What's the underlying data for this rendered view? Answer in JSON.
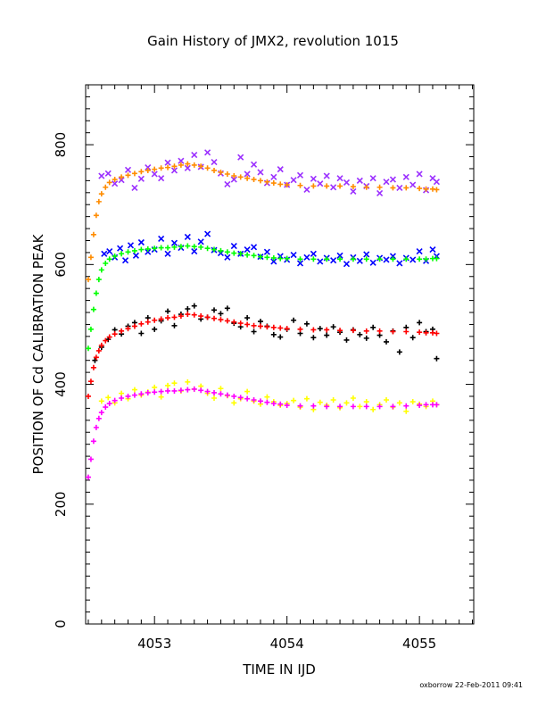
{
  "chart_data": {
    "type": "scatter",
    "title": "Gain History of JMX2, revolution 1015",
    "xlabel": "TIME IN IJD",
    "ylabel": "POSITION OF Cd CALIBRATION PEAK",
    "xlim": [
      4052.48,
      4055.41
    ],
    "ylim": [
      0,
      900
    ],
    "x_ticks": [
      4053,
      4054,
      4055
    ],
    "y_ticks": [
      0,
      200,
      400,
      600,
      800
    ],
    "grid": false,
    "legend": "none",
    "footer": "oxborrow 22-Feb-2011 09:41",
    "series": [
      {
        "color": "#9b30ff",
        "marker": "x",
        "x": [
          4052.6,
          4052.65,
          4052.7,
          4052.75,
          4052.8,
          4052.85,
          4052.9,
          4052.95,
          4053.0,
          4053.05,
          4053.1,
          4053.15,
          4053.2,
          4053.25,
          4053.3,
          4053.35,
          4053.4,
          4053.45,
          4053.5,
          4053.55,
          4053.6,
          4053.65,
          4053.7,
          4053.75,
          4053.8,
          4053.85,
          4053.9,
          4053.95,
          4054.0,
          4054.05,
          4054.1,
          4054.15,
          4054.2,
          4054.25,
          4054.3,
          4054.35,
          4054.4,
          4054.45,
          4054.5,
          4054.55,
          4054.6,
          4054.65,
          4054.7,
          4054.75,
          4054.8,
          4054.85,
          4054.9,
          4054.95,
          4055.0,
          4055.05,
          4055.1,
          4055.13
        ],
        "y": [
          748,
          752,
          735,
          741,
          758,
          728,
          743,
          762,
          751,
          744,
          770,
          757,
          773,
          761,
          783,
          763,
          787,
          771,
          752,
          734,
          742,
          779,
          751,
          767,
          754,
          736,
          746,
          759,
          733,
          741,
          749,
          725,
          743,
          735,
          748,
          729,
          744,
          737,
          722,
          740,
          731,
          744,
          719,
          738,
          742,
          728,
          746,
          733,
          751,
          724,
          744,
          738
        ]
      },
      {
        "color": "#ff8c00",
        "marker": "+",
        "x": [
          4052.5,
          4052.52,
          4052.54,
          4052.56,
          4052.58,
          4052.6,
          4052.63,
          4052.66,
          4052.7,
          4052.75,
          4052.8,
          4052.85,
          4052.9,
          4052.95,
          4053.0,
          4053.05,
          4053.1,
          4053.15,
          4053.2,
          4053.25,
          4053.3,
          4053.35,
          4053.4,
          4053.45,
          4053.5,
          4053.55,
          4053.6,
          4053.65,
          4053.7,
          4053.75,
          4053.8,
          4053.85,
          4053.9,
          4053.95,
          4054.0,
          4054.1,
          4054.2,
          4054.3,
          4054.4,
          4054.5,
          4054.6,
          4054.7,
          4054.8,
          4054.9,
          4055.0,
          4055.05,
          4055.1,
          4055.13
        ],
        "y": [
          575,
          612,
          650,
          682,
          705,
          718,
          729,
          737,
          742,
          746,
          749,
          752,
          755,
          757,
          759,
          761,
          762,
          764,
          766,
          768,
          766,
          764,
          761,
          757,
          754,
          751,
          748,
          746,
          744,
          742,
          740,
          738,
          736,
          734,
          733,
          732,
          731,
          731,
          731,
          730,
          729,
          729,
          728,
          728,
          727,
          726,
          726,
          725
        ]
      },
      {
        "color": "#0000ff",
        "marker": "x",
        "x": [
          4052.62,
          4052.66,
          4052.7,
          4052.74,
          4052.78,
          4052.82,
          4052.86,
          4052.9,
          4052.95,
          4053.0,
          4053.05,
          4053.1,
          4053.15,
          4053.2,
          4053.25,
          4053.3,
          4053.35,
          4053.4,
          4053.45,
          4053.5,
          4053.55,
          4053.6,
          4053.65,
          4053.7,
          4053.75,
          4053.8,
          4053.85,
          4053.9,
          4053.95,
          4054.0,
          4054.05,
          4054.1,
          4054.15,
          4054.2,
          4054.25,
          4054.3,
          4054.35,
          4054.4,
          4054.45,
          4054.5,
          4054.55,
          4054.6,
          4054.65,
          4054.7,
          4054.75,
          4054.8,
          4054.85,
          4054.9,
          4054.95,
          4055.0,
          4055.05,
          4055.1,
          4055.13
        ],
        "y": [
          618,
          622,
          612,
          627,
          607,
          632,
          615,
          637,
          621,
          625,
          643,
          618,
          636,
          628,
          646,
          622,
          638,
          651,
          624,
          619,
          612,
          631,
          618,
          625,
          629,
          613,
          621,
          605,
          614,
          608,
          616,
          602,
          612,
          618,
          605,
          611,
          607,
          615,
          601,
          612,
          606,
          617,
          603,
          611,
          608,
          614,
          602,
          611,
          608,
          622,
          606,
          625,
          614
        ]
      },
      {
        "color": "#00ff00",
        "marker": "+",
        "x": [
          4052.5,
          4052.52,
          4052.54,
          4052.56,
          4052.58,
          4052.6,
          4052.63,
          4052.66,
          4052.7,
          4052.75,
          4052.8,
          4052.85,
          4052.9,
          4052.95,
          4053.0,
          4053.05,
          4053.1,
          4053.15,
          4053.2,
          4053.25,
          4053.3,
          4053.35,
          4053.4,
          4053.45,
          4053.5,
          4053.55,
          4053.6,
          4053.65,
          4053.7,
          4053.75,
          4053.8,
          4053.85,
          4053.9,
          4053.95,
          4054.0,
          4054.1,
          4054.2,
          4054.3,
          4054.4,
          4054.5,
          4054.6,
          4054.7,
          4054.8,
          4054.9,
          4055.0,
          4055.05,
          4055.1,
          4055.13
        ],
        "y": [
          460,
          492,
          525,
          552,
          575,
          591,
          602,
          609,
          614,
          618,
          621,
          623,
          625,
          626,
          627,
          628,
          628,
          629,
          630,
          631,
          630,
          629,
          627,
          625,
          623,
          621,
          619,
          618,
          616,
          615,
          613,
          612,
          611,
          610,
          610,
          609,
          609,
          609,
          609,
          609,
          609,
          609,
          609,
          609,
          609,
          609,
          610,
          610
        ]
      },
      {
        "color": "#000000",
        "marker": "+",
        "x": [
          4052.55,
          4052.6,
          4052.65,
          4052.7,
          4052.75,
          4052.8,
          4052.85,
          4052.9,
          4052.95,
          4053.0,
          4053.05,
          4053.1,
          4053.15,
          4053.2,
          4053.25,
          4053.3,
          4053.35,
          4053.4,
          4053.45,
          4053.5,
          4053.55,
          4053.6,
          4053.65,
          4053.7,
          4053.75,
          4053.8,
          4053.85,
          4053.9,
          4053.95,
          4054.0,
          4054.05,
          4054.1,
          4054.15,
          4054.2,
          4054.25,
          4054.3,
          4054.35,
          4054.4,
          4054.45,
          4054.5,
          4054.55,
          4054.6,
          4054.65,
          4054.7,
          4054.75,
          4054.8,
          4054.85,
          4054.9,
          4054.95,
          4055.0,
          4055.05,
          4055.1,
          4055.13
        ],
        "y": [
          440,
          462,
          475,
          491,
          484,
          497,
          503,
          485,
          511,
          492,
          506,
          522,
          498,
          517,
          526,
          531,
          509,
          512,
          524,
          518,
          527,
          502,
          496,
          511,
          488,
          505,
          497,
          483,
          479,
          492,
          507,
          485,
          501,
          478,
          493,
          482,
          496,
          487,
          474,
          491,
          483,
          477,
          495,
          482,
          471,
          489,
          454,
          495,
          478,
          503,
          488,
          492,
          443
        ]
      },
      {
        "color": "#ff0000",
        "marker": "+",
        "x": [
          4052.5,
          4052.52,
          4052.54,
          4052.56,
          4052.58,
          4052.6,
          4052.63,
          4052.66,
          4052.7,
          4052.75,
          4052.8,
          4052.85,
          4052.9,
          4052.95,
          4053.0,
          4053.05,
          4053.1,
          4053.15,
          4053.2,
          4053.25,
          4053.3,
          4053.35,
          4053.4,
          4053.45,
          4053.5,
          4053.55,
          4053.6,
          4053.65,
          4053.7,
          4053.75,
          4053.8,
          4053.85,
          4053.9,
          4053.95,
          4054.0,
          4054.1,
          4054.2,
          4054.3,
          4054.4,
          4054.5,
          4054.6,
          4054.7,
          4054.8,
          4054.9,
          4055.0,
          4055.05,
          4055.1,
          4055.13
        ],
        "y": [
          380,
          405,
          428,
          445,
          456,
          465,
          473,
          479,
          484,
          489,
          493,
          497,
          501,
          504,
          507,
          509,
          511,
          512,
          514,
          517,
          516,
          514,
          512,
          510,
          508,
          506,
          504,
          502,
          500,
          498,
          497,
          496,
          495,
          494,
          493,
          492,
          491,
          491,
          490,
          490,
          489,
          489,
          488,
          488,
          487,
          486,
          486,
          485
        ]
      },
      {
        "color": "#ffff00",
        "marker": "+",
        "x": [
          4052.6,
          4052.65,
          4052.7,
          4052.75,
          4052.8,
          4052.85,
          4052.9,
          4052.95,
          4053.0,
          4053.05,
          4053.1,
          4053.15,
          4053.2,
          4053.25,
          4053.3,
          4053.35,
          4053.4,
          4053.45,
          4053.5,
          4053.55,
          4053.6,
          4053.65,
          4053.7,
          4053.75,
          4053.8,
          4053.85,
          4053.9,
          4053.95,
          4054.0,
          4054.05,
          4054.1,
          4054.15,
          4054.2,
          4054.25,
          4054.3,
          4054.35,
          4054.4,
          4054.45,
          4054.5,
          4054.55,
          4054.6,
          4054.65,
          4054.7,
          4054.75,
          4054.8,
          4054.85,
          4054.9,
          4054.95,
          4055.0,
          4055.05,
          4055.1,
          4055.13
        ],
        "y": [
          372,
          378,
          369,
          385,
          376,
          391,
          382,
          387,
          395,
          379,
          398,
          402,
          389,
          404,
          392,
          397,
          385,
          377,
          393,
          381,
          369,
          376,
          388,
          372,
          367,
          379,
          371,
          365,
          368,
          373,
          362,
          376,
          358,
          370,
          365,
          374,
          361,
          369,
          377,
          363,
          371,
          358,
          366,
          374,
          362,
          369,
          355,
          371,
          367,
          363,
          372,
          366
        ]
      },
      {
        "color": "#ff00ff",
        "marker": "+",
        "x": [
          4052.5,
          4052.52,
          4052.54,
          4052.56,
          4052.58,
          4052.6,
          4052.63,
          4052.66,
          4052.7,
          4052.75,
          4052.8,
          4052.85,
          4052.9,
          4052.95,
          4053.0,
          4053.05,
          4053.1,
          4053.15,
          4053.2,
          4053.25,
          4053.3,
          4053.35,
          4053.4,
          4053.45,
          4053.5,
          4053.55,
          4053.6,
          4053.65,
          4053.7,
          4053.75,
          4053.8,
          4053.85,
          4053.9,
          4053.95,
          4054.0,
          4054.1,
          4054.2,
          4054.3,
          4054.4,
          4054.5,
          4054.6,
          4054.7,
          4054.8,
          4054.9,
          4055.0,
          4055.05,
          4055.1,
          4055.13
        ],
        "y": [
          245,
          275,
          305,
          328,
          343,
          353,
          362,
          368,
          373,
          377,
          380,
          382,
          384,
          386,
          387,
          388,
          389,
          389,
          390,
          391,
          392,
          390,
          388,
          386,
          384,
          382,
          380,
          378,
          376,
          374,
          372,
          370,
          368,
          367,
          365,
          364,
          364,
          363,
          363,
          363,
          363,
          363,
          363,
          364,
          365,
          366,
          366,
          366
        ]
      }
    ]
  }
}
